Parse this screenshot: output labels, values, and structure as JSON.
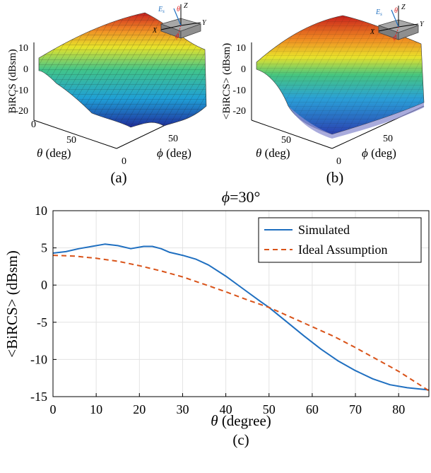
{
  "panel_a": {
    "caption": "(a)",
    "zlabel": "BiRCS (dBsm)",
    "z_ticks": [
      "10",
      "0",
      "-10",
      "-20"
    ],
    "theta_ticks": [
      "0",
      "50"
    ],
    "phi_ticks": [
      "0",
      "50"
    ],
    "theta_label_sym": "θ",
    "theta_label_unit": " (deg)",
    "phi_label_sym": "ϕ",
    "phi_label_unit": " (deg)"
  },
  "panel_b": {
    "caption": "(b)",
    "zlabel": "<BiRCS> (dBsm)",
    "z_ticks": [
      "10",
      "0",
      "-10",
      "-20"
    ],
    "theta_ticks": [
      "50"
    ],
    "phi_ticks": [
      "0",
      "50"
    ],
    "theta_label_sym": "θ",
    "theta_label_unit": " (deg)",
    "phi_label_sym": "ϕ",
    "phi_label_unit": " (deg)"
  },
  "inset": {
    "es_label": "E",
    "es_sub": "s",
    "theta": "θ",
    "phi": "ϕ",
    "x": "X",
    "y": "Y",
    "z": "Z"
  },
  "panel_c": {
    "caption": "(c)",
    "title_sym": "ϕ",
    "title_rest": "=30°"
  },
  "colors": {
    "simulated": "#1f6fc0",
    "ideal": "#d95319",
    "grid": "#e3e3e3"
  },
  "chart_data": {
    "type": "line",
    "title": "ϕ=30°",
    "xlabel_sym": "θ",
    "xlabel_unit": " (degree)",
    "ylabel": "<BiRCS> (dBsm)",
    "xlim": [
      0,
      87
    ],
    "ylim": [
      -15,
      10
    ],
    "xticks": [
      0,
      10,
      20,
      30,
      40,
      50,
      60,
      70,
      80
    ],
    "yticks": [
      -15,
      -10,
      -5,
      0,
      5,
      10
    ],
    "grid": true,
    "legend_position": "top-right",
    "series": [
      {
        "name": "Simulated",
        "style": "solid",
        "x": [
          0,
          3,
          6,
          9,
          12,
          15,
          18,
          21,
          23,
          25,
          27,
          30,
          33,
          36,
          40,
          44,
          48,
          50,
          54,
          58,
          62,
          66,
          70,
          74,
          78,
          82,
          87
        ],
        "y": [
          4.3,
          4.5,
          4.9,
          5.2,
          5.5,
          5.3,
          4.9,
          5.2,
          5.2,
          4.9,
          4.4,
          4.0,
          3.5,
          2.7,
          1.2,
          -0.5,
          -2.2,
          -3.0,
          -4.9,
          -6.8,
          -8.6,
          -10.2,
          -11.5,
          -12.6,
          -13.4,
          -13.8,
          -14.1
        ]
      },
      {
        "name": "Ideal Assumption",
        "style": "dashed",
        "x": [
          0,
          5,
          10,
          15,
          20,
          25,
          30,
          35,
          40,
          45,
          50,
          55,
          60,
          65,
          70,
          75,
          80,
          87
        ],
        "y": [
          4.0,
          3.9,
          3.6,
          3.2,
          2.6,
          1.9,
          1.1,
          0.1,
          -0.9,
          -2.0,
          -3.0,
          -4.3,
          -5.6,
          -6.9,
          -8.4,
          -10.0,
          -11.6,
          -14.2
        ]
      }
    ]
  }
}
